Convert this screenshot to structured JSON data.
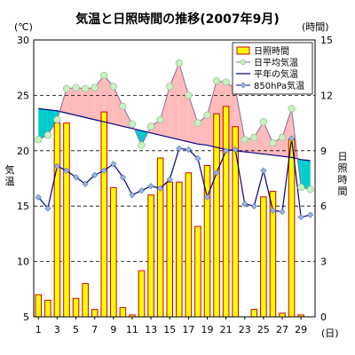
{
  "chart_data": {
    "type": "bar+line",
    "title": "気温と日照時間の推移(2007年9月)",
    "left_unit": "(℃)",
    "right_unit": "(時間)",
    "ylabel_left": "気温",
    "ylabel_right": "日照時間",
    "x_unit": "(日)",
    "x_ticks": [
      1,
      3,
      5,
      7,
      9,
      11,
      13,
      15,
      17,
      19,
      21,
      23,
      25,
      27,
      29
    ],
    "x": [
      1,
      2,
      3,
      4,
      5,
      6,
      7,
      8,
      9,
      10,
      11,
      12,
      13,
      14,
      15,
      16,
      17,
      18,
      19,
      20,
      21,
      22,
      23,
      24,
      25,
      26,
      27,
      28,
      29,
      30
    ],
    "ylim_left": [
      5,
      30
    ],
    "yticks_left": [
      5,
      10,
      15,
      20,
      25,
      30
    ],
    "ylim_right": [
      0,
      15
    ],
    "yticks_right": [
      0,
      3,
      6,
      9,
      12,
      15
    ],
    "grid": "dashed horizontal",
    "legend_position": "top-right",
    "legend": [
      "日照時間",
      "日平均気温",
      "平年の気温",
      "850hPa気温"
    ],
    "series": [
      {
        "name": "日照時間",
        "axis": "right",
        "kind": "bar",
        "values": [
          1.2,
          0.9,
          10.5,
          10.5,
          1.0,
          1.8,
          0.4,
          11.1,
          7.0,
          0.5,
          0.1,
          2.5,
          6.6,
          8.6,
          7.3,
          7.3,
          7.8,
          4.9,
          8.2,
          11.0,
          11.4,
          10.3,
          0.0,
          0.4,
          6.5,
          6.8,
          0.2,
          9.6,
          0.1,
          0.0
        ]
      },
      {
        "name": "日平均気温",
        "axis": "left",
        "kind": "line",
        "values": [
          21.0,
          21.4,
          22.8,
          25.6,
          25.7,
          25.6,
          25.7,
          26.8,
          25.8,
          24.0,
          22.4,
          20.5,
          22.2,
          22.8,
          25.8,
          27.9,
          25.0,
          22.5,
          23.2,
          26.3,
          26.2,
          25.6,
          21.0,
          21.2,
          22.6,
          20.7,
          21.2,
          23.8,
          16.7,
          16.5
        ]
      },
      {
        "name": "平年の気温",
        "axis": "left",
        "kind": "line",
        "values": [
          23.8,
          23.7,
          23.6,
          23.4,
          23.2,
          23.0,
          22.8,
          22.6,
          22.4,
          22.2,
          22.0,
          21.8,
          21.6,
          21.4,
          21.2,
          21.0,
          20.8,
          20.6,
          20.5,
          20.3,
          20.1,
          20.0,
          19.9,
          19.8,
          19.7,
          19.6,
          19.5,
          19.4,
          19.2,
          19.1
        ]
      },
      {
        "name": "850hPa気温",
        "axis": "left",
        "kind": "line",
        "values": [
          15.8,
          14.8,
          18.6,
          18.2,
          17.6,
          17.0,
          17.8,
          18.2,
          18.8,
          17.6,
          16.0,
          16.4,
          16.8,
          16.6,
          17.4,
          20.2,
          20.1,
          19.3,
          15.8,
          18.0,
          20.0,
          20.1,
          15.2,
          15.0,
          18.2,
          14.6,
          14.5,
          21.1,
          14.0,
          14.2
        ]
      }
    ]
  },
  "colors": {
    "bar_fill": "#ffff00",
    "bar_stroke": "#cc0000",
    "daily_line": "#8a6a9a",
    "daily_marker": "#c8f0c0",
    "normal_line": "#000080",
    "upper_line": "#000080",
    "warm_fill": "#ffbbbb",
    "cool_fill": "#00cccc",
    "upper_marker": "#99b4e0"
  }
}
